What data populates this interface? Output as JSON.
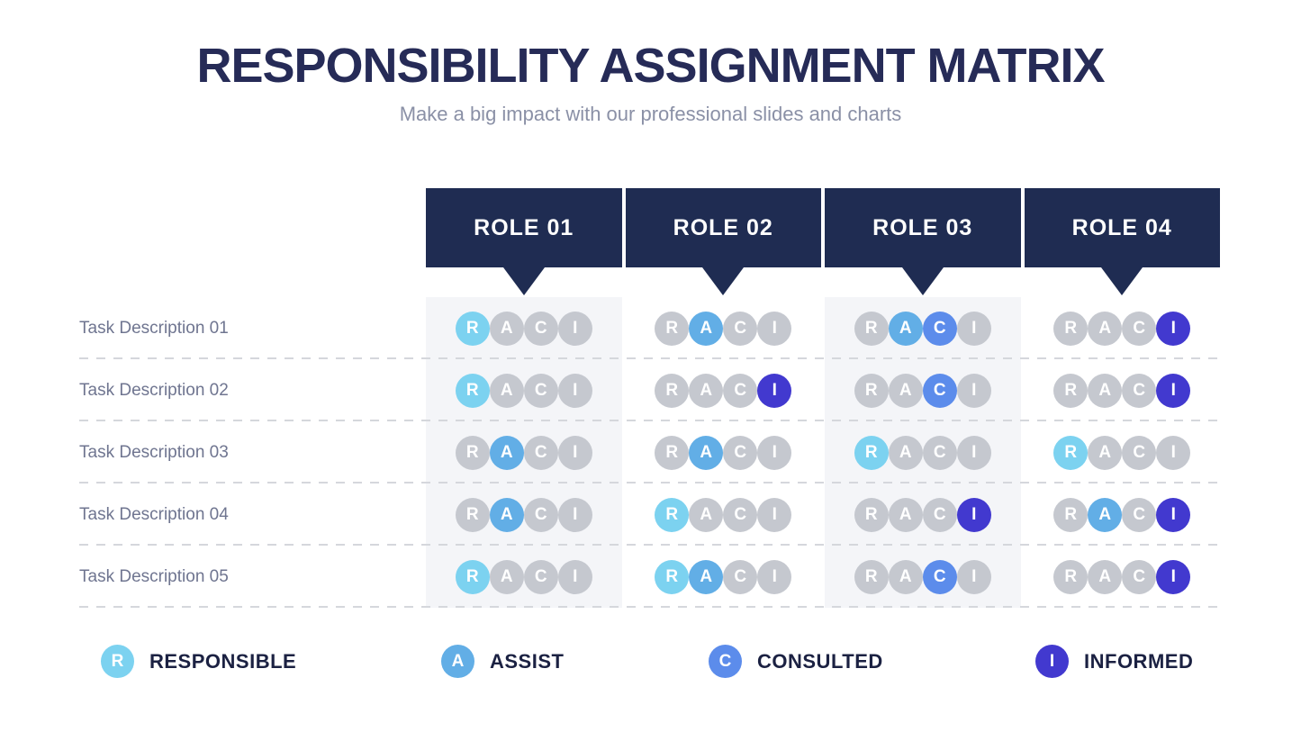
{
  "header": {
    "title": "RESPONSIBILITY ASSIGNMENT MATRIX",
    "subtitle": "Make a big impact with our professional slides and charts"
  },
  "roles": [
    {
      "label": "ROLE 01"
    },
    {
      "label": "ROLE 02"
    },
    {
      "label": "ROLE 03"
    },
    {
      "label": "ROLE 04"
    }
  ],
  "letters": [
    "R",
    "A",
    "C",
    "I"
  ],
  "tasks": [
    {
      "label": "Task Description 01"
    },
    {
      "label": "Task Description 02"
    },
    {
      "label": "Task Description 03"
    },
    {
      "label": "Task Description 04"
    },
    {
      "label": "Task Description 05"
    }
  ],
  "matrix": [
    [
      [
        "R"
      ],
      [
        "A"
      ],
      [
        "A",
        "C"
      ],
      [
        "I"
      ]
    ],
    [
      [
        "R"
      ],
      [
        "I"
      ],
      [
        "C"
      ],
      [
        "I"
      ]
    ],
    [
      [
        "A"
      ],
      [
        "A"
      ],
      [
        "R"
      ],
      [
        "R"
      ]
    ],
    [
      [
        "A"
      ],
      [
        "R"
      ],
      [
        "I"
      ],
      [
        "A",
        "I"
      ]
    ],
    [
      [
        "R"
      ],
      [
        "R",
        "A"
      ],
      [
        "C"
      ],
      [
        "I"
      ]
    ]
  ],
  "legend": [
    {
      "letter": "R",
      "label": "RESPONSIBLE"
    },
    {
      "letter": "A",
      "label": "ASSIST"
    },
    {
      "letter": "C",
      "label": "CONSULTED"
    },
    {
      "letter": "I",
      "label": "INFORMED"
    }
  ],
  "colors": {
    "R": "#7cd2f0",
    "A": "#62aee6",
    "C": "#5c8ceb",
    "I": "#4239cf",
    "inactive_circle": "#c5c8cf",
    "header_navy": "#1f2c52",
    "title_navy": "#262b57",
    "stripe_bg": "#f4f5f8"
  }
}
